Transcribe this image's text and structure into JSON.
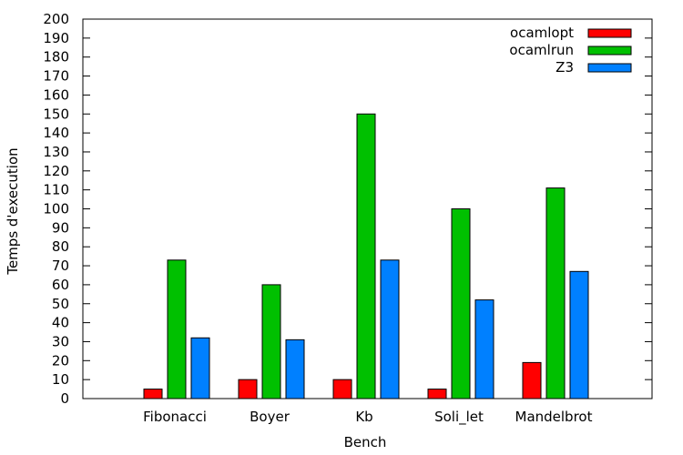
{
  "chart_data": {
    "type": "bar",
    "title": "",
    "xlabel": "Bench",
    "ylabel": "Temps d'execution",
    "ylim": [
      0,
      200
    ],
    "yticks": [
      0,
      10,
      20,
      30,
      40,
      50,
      60,
      70,
      80,
      90,
      100,
      110,
      120,
      130,
      140,
      150,
      160,
      170,
      180,
      190,
      200
    ],
    "grid": false,
    "legend_position": "top-right",
    "categories": [
      "Fibonacci",
      "Boyer",
      "Kb",
      "Soli_let",
      "Mandelbrot"
    ],
    "series": [
      {
        "name": "ocamlopt",
        "color": "#ff0000",
        "values": [
          5,
          10,
          10,
          5,
          19
        ]
      },
      {
        "name": "ocamlrun",
        "color": "#00c000",
        "values": [
          73,
          60,
          150,
          100,
          111
        ]
      },
      {
        "name": "Z3",
        "color": "#0080ff",
        "values": [
          32,
          31,
          73,
          52,
          67
        ]
      }
    ]
  }
}
